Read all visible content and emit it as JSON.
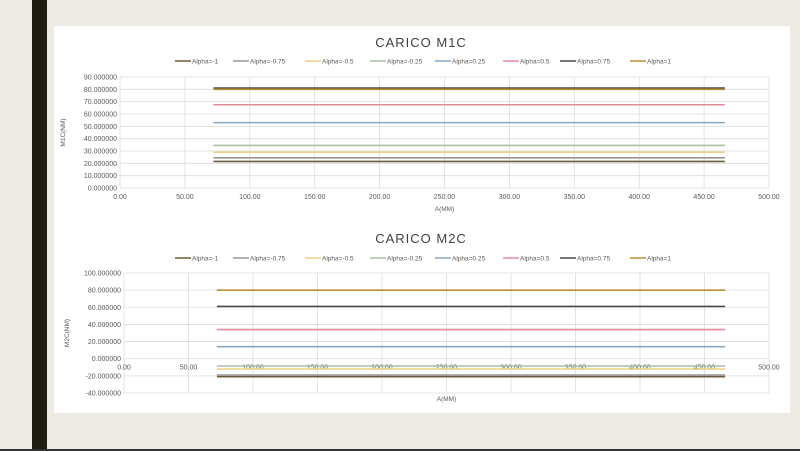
{
  "chart_data": [
    {
      "type": "line",
      "title": "CARICO M1C",
      "xlabel": "A(MM)",
      "ylabel": "M1C(NM)",
      "xlim": [
        0,
        500
      ],
      "ylim": [
        0,
        90
      ],
      "xticks": [
        "0.00",
        "50.00",
        "100.00",
        "150.00",
        "200.00",
        "250.00",
        "300.00",
        "350.00",
        "400.00",
        "450.00",
        "500.00"
      ],
      "yticks": [
        "0.000000",
        "10.000000",
        "20.000000",
        "30.000000",
        "40.000000",
        "50.000000",
        "60.000000",
        "70.000000",
        "80.000000",
        "90.000000"
      ],
      "grid": true,
      "legend": "top",
      "series": [
        {
          "name": "Alpha=-1",
          "color": "#6b5a3e",
          "x": [
            72,
            466
          ],
          "y": [
            21.5,
            21.5
          ]
        },
        {
          "name": "Alpha=-0.75",
          "color": "#9a9590",
          "x": [
            72,
            466
          ],
          "y": [
            24.5,
            24.5
          ]
        },
        {
          "name": "Alpha=-0.5",
          "color": "#efcf85",
          "x": [
            72,
            466
          ],
          "y": [
            29,
            29
          ]
        },
        {
          "name": "Alpha=-0.25",
          "color": "#a8bfa0",
          "x": [
            72,
            466
          ],
          "y": [
            34.5,
            34.5
          ]
        },
        {
          "name": "Alpha=0.25",
          "color": "#86a8c0",
          "x": [
            72,
            466
          ],
          "y": [
            53,
            53
          ]
        },
        {
          "name": "Alpha=0.5",
          "color": "#e08a9a",
          "x": [
            72,
            466
          ],
          "y": [
            67.5,
            67.5
          ]
        },
        {
          "name": "Alpha=0.75",
          "color": "#4a4a44",
          "x": [
            72,
            466
          ],
          "y": [
            81,
            81
          ]
        },
        {
          "name": "Alpha=1",
          "color": "#b89030",
          "x": [
            72,
            466
          ],
          "y": [
            80,
            80
          ]
        }
      ]
    },
    {
      "type": "line",
      "title": "CARICO M2C",
      "xlabel": "A(MM)",
      "ylabel": "M2C(NM)",
      "xlim": [
        0,
        500
      ],
      "ylim": [
        -40,
        100
      ],
      "xticks": [
        "0.00",
        "50.00",
        "100.00",
        "150.00",
        "200.00",
        "250.00",
        "300.00",
        "350.00",
        "400.00",
        "450.00",
        "500.00"
      ],
      "yticks": [
        "-40.000000",
        "-20.000000",
        "0.000000",
        "20.000000",
        "40.000000",
        "60.000000",
        "80.000000",
        "100.000000"
      ],
      "grid": true,
      "legend": "top",
      "series": [
        {
          "name": "Alpha=-1",
          "color": "#6b5a3e",
          "x": [
            72,
            466
          ],
          "y": [
            -21,
            -21
          ]
        },
        {
          "name": "Alpha=-0.75",
          "color": "#9a9590",
          "x": [
            72,
            466
          ],
          "y": [
            -19,
            -19
          ]
        },
        {
          "name": "Alpha=-0.5",
          "color": "#efcf85",
          "x": [
            72,
            466
          ],
          "y": [
            -12,
            -12
          ]
        },
        {
          "name": "Alpha=-0.25",
          "color": "#a8bfa0",
          "x": [
            72,
            466
          ],
          "y": [
            -8.5,
            -8.5
          ]
        },
        {
          "name": "Alpha=0.25",
          "color": "#86a8c0",
          "x": [
            72,
            466
          ],
          "y": [
            14,
            14
          ]
        },
        {
          "name": "Alpha=0.5",
          "color": "#e08a9a",
          "x": [
            72,
            466
          ],
          "y": [
            34,
            34
          ]
        },
        {
          "name": "Alpha=0.75",
          "color": "#4a4a44",
          "x": [
            72,
            466
          ],
          "y": [
            61,
            61
          ]
        },
        {
          "name": "Alpha=1",
          "color": "#b89030",
          "x": [
            72,
            466
          ],
          "y": [
            80,
            80
          ]
        }
      ]
    }
  ]
}
